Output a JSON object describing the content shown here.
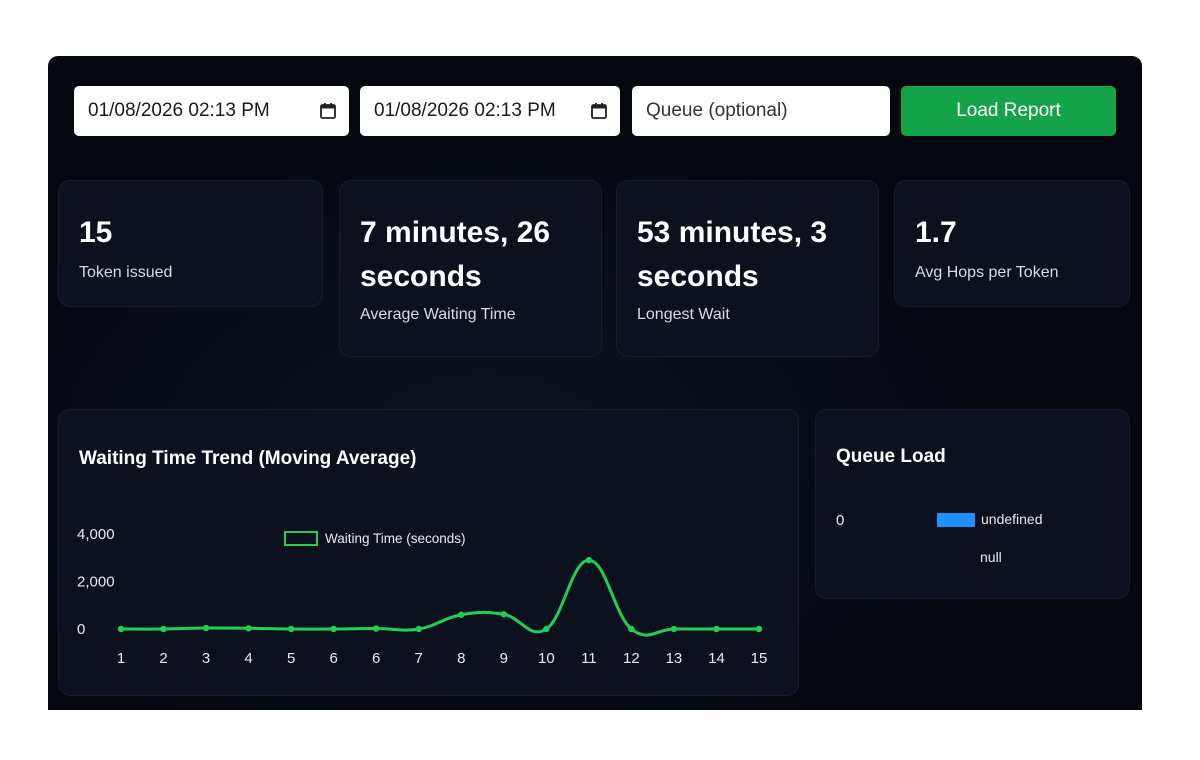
{
  "filters": {
    "date_from": "01/08/2026 02:13 PM",
    "date_to": "01/08/2026 02:13 PM",
    "queue_placeholder": "Queue (optional)",
    "load_label": "Load Report"
  },
  "stats": {
    "tokens": {
      "value": "15",
      "label": "Token issued"
    },
    "avg_wait": {
      "value_line1": "7 minutes, 26",
      "value_line2": "seconds",
      "label": "Average Waiting Time"
    },
    "longest_wait": {
      "value_line1": "53 minutes, 3",
      "value_line2": "seconds",
      "label": "Longest Wait"
    },
    "avg_hops": {
      "value": "1.7",
      "label": "Avg Hops per Token"
    }
  },
  "trend": {
    "title": "Waiting Time Trend (Moving Average)"
  },
  "queue_load": {
    "title": "Queue Load",
    "axis_zero": "0",
    "legend_label": "undefined",
    "category_label": "null",
    "swatch_color": "#1e90ff"
  },
  "chart_data": {
    "type": "line",
    "title": "Waiting Time Trend (Moving Average)",
    "legend_placement": "top",
    "line_color": "#1fcf57",
    "x": [
      "1",
      "2",
      "3",
      "4",
      "5",
      "6",
      "6",
      "7",
      "8",
      "9",
      "10",
      "11",
      "12",
      "13",
      "14",
      "15"
    ],
    "series": [
      {
        "name": "Waiting Time (seconds)",
        "values": [
          0,
          0,
          40,
          30,
          0,
          0,
          20,
          0,
          600,
          620,
          0,
          2900,
          0,
          0,
          0,
          0
        ]
      }
    ],
    "yticks": [
      "0",
      "2,000",
      "4,000"
    ],
    "ylim": [
      0,
      4000
    ],
    "grid": false
  }
}
